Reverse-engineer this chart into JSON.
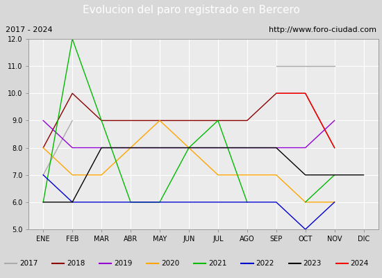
{
  "title": "Evolucion del paro registrado en Bercero",
  "subtitle_left": "2017 - 2024",
  "subtitle_right": "http://www.foro-ciudad.com",
  "months": [
    "ENE",
    "FEB",
    "MAR",
    "ABR",
    "MAY",
    "JUN",
    "JUL",
    "AGO",
    "SEP",
    "OCT",
    "NOV",
    "DIC"
  ],
  "ylim": [
    5.0,
    12.0
  ],
  "yticks": [
    5.0,
    6.0,
    7.0,
    8.0,
    9.0,
    10.0,
    11.0,
    12.0
  ],
  "series": {
    "2017": {
      "color": "#aaaaaa",
      "values": [
        7.0,
        9.0,
        null,
        null,
        null,
        null,
        null,
        null,
        11.0,
        11.0,
        11.0,
        null
      ]
    },
    "2018": {
      "color": "#8b0000",
      "values": [
        8.0,
        10.0,
        9.0,
        9.0,
        9.0,
        9.0,
        9.0,
        9.0,
        10.0,
        10.0,
        8.0,
        null
      ]
    },
    "2019": {
      "color": "#9400d3",
      "values": [
        9.0,
        8.0,
        8.0,
        8.0,
        8.0,
        8.0,
        8.0,
        8.0,
        8.0,
        8.0,
        9.0,
        null
      ]
    },
    "2020": {
      "color": "#ffa500",
      "values": [
        8.0,
        7.0,
        7.0,
        8.0,
        9.0,
        8.0,
        7.0,
        7.0,
        7.0,
        6.0,
        6.0,
        null
      ]
    },
    "2021": {
      "color": "#00bb00",
      "values": [
        6.0,
        12.0,
        9.0,
        6.0,
        6.0,
        8.0,
        9.0,
        6.0,
        null,
        6.0,
        7.0,
        null
      ]
    },
    "2022": {
      "color": "#0000cc",
      "values": [
        7.0,
        6.0,
        6.0,
        6.0,
        6.0,
        6.0,
        6.0,
        6.0,
        6.0,
        5.0,
        6.0,
        null
      ]
    },
    "2023": {
      "color": "#000000",
      "values": [
        6.0,
        6.0,
        8.0,
        8.0,
        8.0,
        8.0,
        8.0,
        8.0,
        8.0,
        7.0,
        7.0,
        7.0
      ]
    },
    "2024": {
      "color": "#ff0000",
      "values": [
        null,
        null,
        null,
        null,
        null,
        null,
        null,
        null,
        10.0,
        10.0,
        8.0,
        null
      ]
    }
  },
  "title_bg": "#4169b0",
  "title_color": "#ffffff",
  "title_fontsize": 11,
  "subtitle_fontsize": 8,
  "tick_fontsize": 7,
  "legend_fontsize": 7.5,
  "plot_bg": "#ebebeb",
  "outer_bg": "#d8d8d8",
  "grid_color": "#ffffff",
  "year_order": [
    "2017",
    "2018",
    "2019",
    "2020",
    "2021",
    "2022",
    "2023",
    "2024"
  ]
}
